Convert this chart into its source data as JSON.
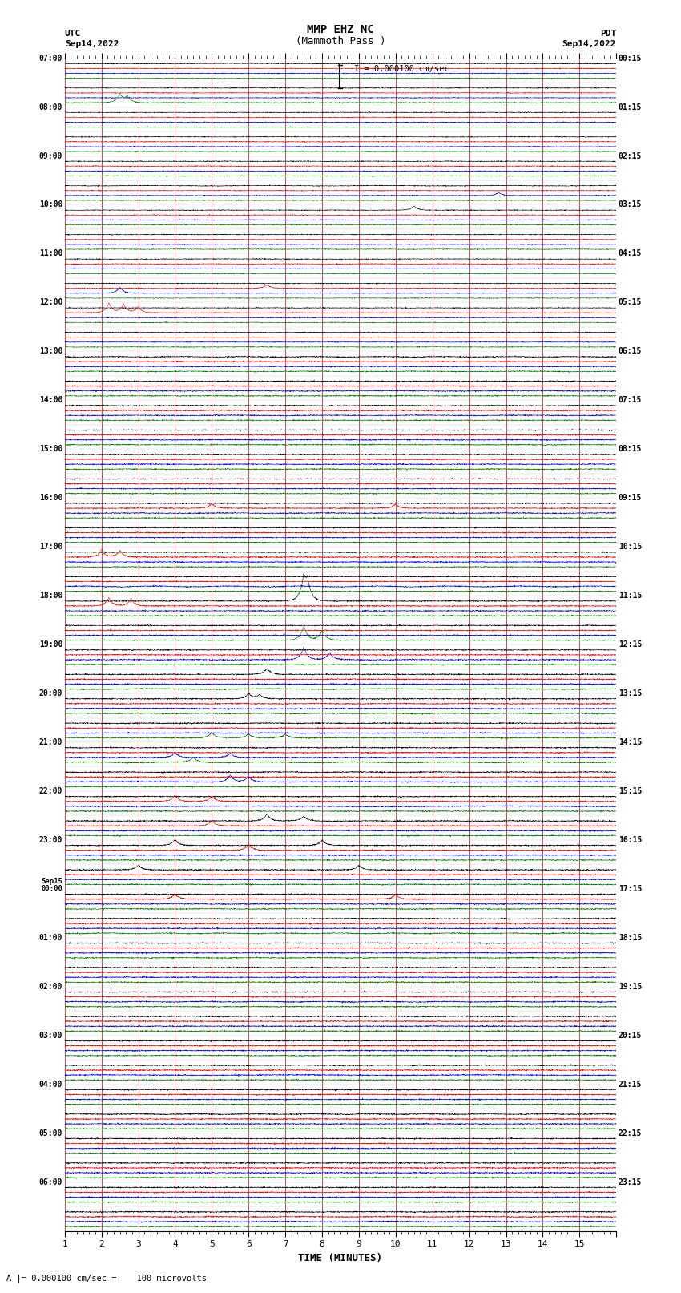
{
  "title_line1": "MMP EHZ NC",
  "title_line2": "(Mammoth Pass )",
  "scale_text": "I = 0.000100 cm/sec",
  "left_label_line1": "UTC",
  "left_label_line2": "Sep14,2022",
  "right_label_line1": "PDT",
  "right_label_line2": "Sep14,2022",
  "bottom_label": "A |= 0.000100 cm/sec =    100 microvolts",
  "xlabel": "TIME (MINUTES)",
  "left_times": [
    "07:00",
    "",
    "08:00",
    "",
    "09:00",
    "",
    "10:00",
    "",
    "11:00",
    "",
    "12:00",
    "",
    "13:00",
    "",
    "14:00",
    "",
    "15:00",
    "",
    "16:00",
    "",
    "17:00",
    "",
    "18:00",
    "",
    "19:00",
    "",
    "20:00",
    "",
    "21:00",
    "",
    "22:00",
    "",
    "23:00",
    "",
    "Sep15\n00:00",
    "",
    "01:00",
    "",
    "02:00",
    "",
    "03:00",
    "",
    "04:00",
    "",
    "05:00",
    "",
    "06:00",
    ""
  ],
  "right_times": [
    "00:15",
    "",
    "01:15",
    "",
    "02:15",
    "",
    "03:15",
    "",
    "04:15",
    "",
    "05:15",
    "",
    "06:15",
    "",
    "07:15",
    "",
    "08:15",
    "",
    "09:15",
    "",
    "10:15",
    "",
    "11:15",
    "",
    "12:15",
    "",
    "13:15",
    "",
    "14:15",
    "",
    "15:15",
    "",
    "16:15",
    "",
    "17:15",
    "",
    "18:15",
    "",
    "19:15",
    "",
    "20:15",
    "",
    "21:15",
    "",
    "22:15",
    "",
    "23:15",
    ""
  ],
  "n_rows": 48,
  "n_cols": 15,
  "colors": [
    "black",
    "red",
    "blue",
    "green"
  ],
  "bg_color": "white",
  "grid_color": "#888888",
  "seed": 42,
  "fig_width": 8.5,
  "fig_height": 16.13,
  "dpi": 100,
  "trace_lw": 0.35,
  "noise_base": 0.008,
  "noise_late": 0.012
}
